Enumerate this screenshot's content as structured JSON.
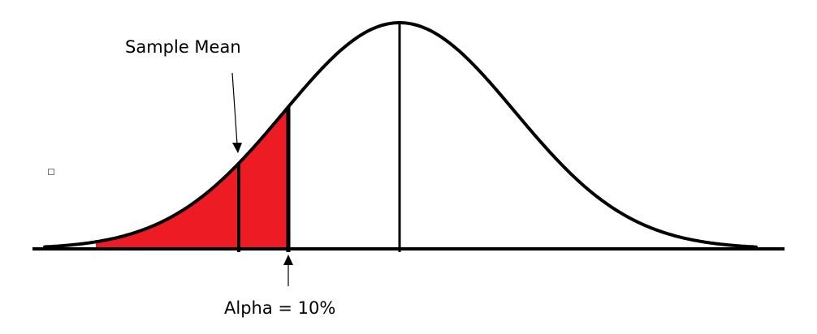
{
  "diagram": {
    "labels": {
      "sample_mean": "Sample Mean",
      "alpha": "Alpha = 10%"
    },
    "colors": {
      "curve": "#000000",
      "rejection_region": "#ed1c24",
      "background": "#ffffff"
    },
    "icons": {
      "small_box": "small-square-icon"
    }
  }
}
